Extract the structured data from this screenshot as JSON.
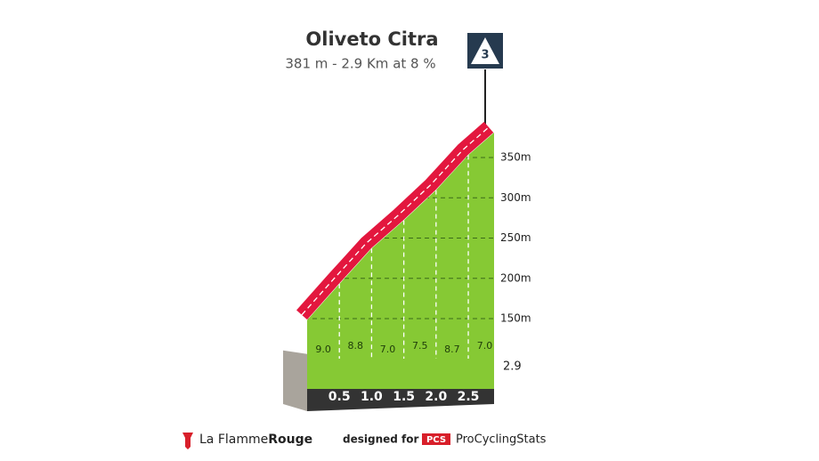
{
  "chart_data": {
    "type": "climb-profile",
    "title": "Oliveto Citra",
    "subtitle": "381 m - 2.9 Km at 8 %",
    "category": "3",
    "x": [
      0,
      0.5,
      1.0,
      1.5,
      2.0,
      2.5,
      2.9
    ],
    "x_labels": [
      null,
      "0.5",
      "1.0",
      "1.5",
      "2.0",
      "2.5",
      "2.9"
    ],
    "xlim": [
      0,
      2.9
    ],
    "elevation": [
      148,
      193,
      237,
      272,
      309.5,
      353,
      381
    ],
    "gradients": {
      "values": [
        9.0,
        8.8,
        7.0,
        7.5,
        8.7,
        7.0
      ],
      "value_labels": [
        "9.0",
        "8.8",
        "7.0",
        "7.5",
        "8.7",
        "7.0"
      ]
    },
    "ylim": [
      100,
      400
    ],
    "yticks": [
      {
        "value": 150,
        "label": "150m"
      },
      {
        "value": 200,
        "label": "200m"
      },
      {
        "value": 250,
        "label": "250m"
      },
      {
        "value": 300,
        "label": "300m"
      },
      {
        "value": 350,
        "label": "350m"
      }
    ],
    "colors": {
      "face": "#86c934",
      "top": "#e3173e",
      "base": "#333333"
    }
  },
  "footer": {
    "brand_1": "La Flamme",
    "brand_2": "Rouge",
    "designed": "designed for",
    "pcs": "PCS",
    "site": "ProCyclingStats"
  }
}
